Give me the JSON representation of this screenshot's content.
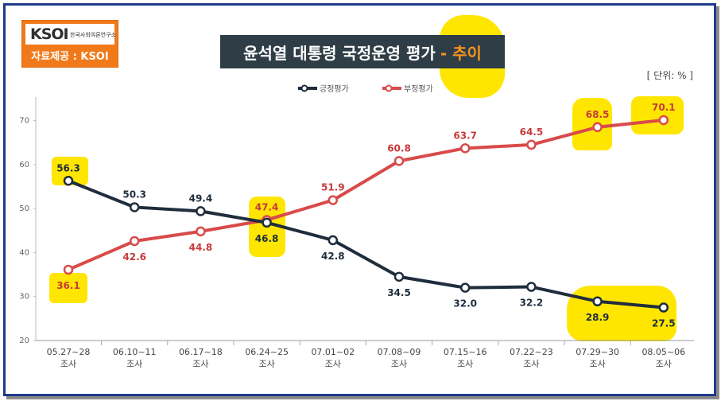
{
  "header": {
    "logo_text": "KSOI",
    "logo_subtitle": "한국사회여론연구소",
    "source_label": "자료제공 : KSOI",
    "title_main": "윤석열 대통령 국정운영 평가",
    "title_accent": "- 추이",
    "unit_label": "[ 단위: % ]"
  },
  "colors": {
    "positive": "#1f2d3d",
    "negative": "#d94a4a",
    "highlight": "#ffe600",
    "logo_orange": "#f07a1a",
    "title_bg": "#2f3d47"
  },
  "chart_data": {
    "type": "line",
    "title": "윤석열 대통령 국정운영 평가 - 추이",
    "unit": "%",
    "categories": [
      "05.27~28 조사",
      "06.10~11 조사",
      "06.17~18 조사",
      "06.24~25 조사",
      "07.01~02 조사",
      "07.08~09 조사",
      "07.15~16 조사",
      "07.22~23 조사",
      "07.29~30 조사",
      "08.05~06 조사"
    ],
    "category_lines": [
      [
        "05.27~28",
        "조사"
      ],
      [
        "06.10~11",
        "조사"
      ],
      [
        "06.17~18",
        "조사"
      ],
      [
        "06.24~25",
        "조사"
      ],
      [
        "07.01~02",
        "조사"
      ],
      [
        "07.08~09",
        "조사"
      ],
      [
        "07.15~16",
        "조사"
      ],
      [
        "07.22~23",
        "조사"
      ],
      [
        "07.29~30",
        "조사"
      ],
      [
        "08.05~06",
        "조사"
      ]
    ],
    "series": [
      {
        "name": "긍정평가",
        "values": [
          56.3,
          50.3,
          49.4,
          46.8,
          42.8,
          34.5,
          32.0,
          32.2,
          28.9,
          27.5
        ],
        "labels": [
          "56.3",
          "50.3",
          "49.4",
          "46.8",
          "42.8",
          "34.5",
          "32.0",
          "32.2",
          "28.9",
          "27.5"
        ]
      },
      {
        "name": "부정평가",
        "values": [
          36.1,
          42.6,
          44.8,
          47.4,
          51.9,
          60.8,
          63.7,
          64.5,
          68.5,
          70.1
        ],
        "labels": [
          "36.1",
          "42.6",
          "44.8",
          "47.4",
          "51.9",
          "60.8",
          "63.7",
          "64.5",
          "68.5",
          "70.1"
        ]
      }
    ],
    "ylim": [
      20,
      75
    ],
    "yticks": [
      20,
      30,
      40,
      50,
      60,
      70
    ],
    "ytick_labels": [
      "20",
      "30",
      "40",
      "50",
      "60",
      "70"
    ],
    "xlabel": "",
    "ylabel": "",
    "legend_position": "top-center"
  }
}
